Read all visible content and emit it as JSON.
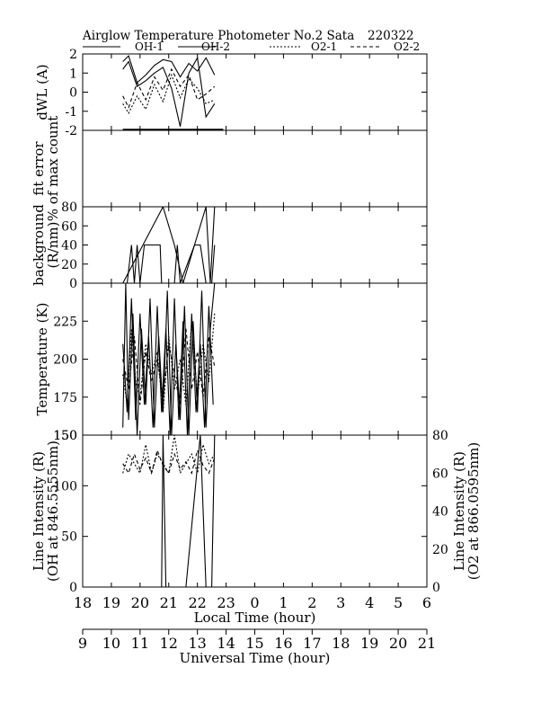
{
  "header": {
    "title": "Airglow Temperature Photometer No.2  Sata",
    "date": "220322"
  },
  "legend": [
    {
      "label": "OH-1",
      "style": "solid"
    },
    {
      "label": "OH-2",
      "style": "solid"
    },
    {
      "label": "O2-1",
      "style": "dotted"
    },
    {
      "label": "O2-2",
      "style": "dashed"
    }
  ],
  "chart_data": {
    "type": "line",
    "x_local_ticks": [
      "18",
      "19",
      "20",
      "21",
      "22",
      "23",
      "0",
      "1",
      "2",
      "3",
      "4",
      "5",
      "6"
    ],
    "x_ut_ticks": [
      "9",
      "10",
      "11",
      "12",
      "13",
      "14",
      "15",
      "16",
      "17",
      "18",
      "19",
      "20",
      "21"
    ],
    "xlabel_local": "Local Time (hour)",
    "xlabel_ut": "Universal Time (hour)",
    "panels": [
      {
        "id": "dwl",
        "ylabel": [
          "dWL (A)"
        ],
        "ylim": [
          -2,
          2
        ],
        "yticks": [
          "-2",
          "-1",
          "0",
          "1",
          "2"
        ],
        "series": [
          {
            "name": "OH-1",
            "style": "solid",
            "x": [
              19.4,
              19.6,
              19.9,
              20.2,
              20.5,
              20.8,
              21.1,
              21.4,
              21.7,
              22.0,
              22.3,
              22.6
            ],
            "y": [
              1.6,
              1.9,
              0.5,
              0.9,
              1.4,
              1.7,
              1.6,
              0.8,
              1.5,
              1.1,
              1.8,
              0.9
            ]
          },
          {
            "name": "OH-2",
            "style": "solid",
            "x": [
              19.4,
              19.6,
              19.9,
              20.2,
              20.5,
              20.8,
              21.1,
              21.4,
              21.7,
              22.0,
              22.3,
              22.6
            ],
            "y": [
              1.2,
              1.6,
              0.3,
              0.6,
              1.0,
              1.3,
              0.2,
              -1.8,
              1.0,
              1.8,
              -1.3,
              -0.6
            ]
          },
          {
            "name": "O2-1",
            "style": "dotted",
            "x": [
              19.4,
              19.6,
              19.9,
              20.2,
              20.5,
              20.8,
              21.1,
              21.4,
              21.7,
              22.0,
              22.3,
              22.6
            ],
            "y": [
              -0.6,
              -1.1,
              -0.2,
              -0.9,
              0.4,
              -0.5,
              0.9,
              -0.3,
              0.7,
              0.2,
              -0.6,
              -0.4
            ]
          },
          {
            "name": "O2-2",
            "style": "dashed",
            "x": [
              19.4,
              19.6,
              19.9,
              20.2,
              20.5,
              20.8,
              21.1,
              21.4,
              21.7,
              22.0,
              22.3,
              22.6
            ],
            "y": [
              -0.2,
              -0.8,
              0.5,
              -0.4,
              0.8,
              0.1,
              1.2,
              0.3,
              0.9,
              -0.4,
              -0.1,
              0.3
            ]
          }
        ],
        "baseline": {
          "x": [
            19.4,
            22.9
          ],
          "y": -1.95
        }
      },
      {
        "id": "fit",
        "ylabel": [
          "fit error",
          "% of max count"
        ],
        "ylim": [
          0,
          1
        ],
        "yticks": [],
        "series": []
      },
      {
        "id": "bg",
        "ylabel": [
          "background",
          "(R/nm)"
        ],
        "ylim": [
          0,
          80
        ],
        "yticks": [
          "0",
          "20",
          "40",
          "60",
          "80"
        ],
        "series": [
          {
            "name": "OH-1",
            "style": "solid",
            "x": [
              19.4,
              19.55,
              19.7,
              19.8,
              19.9,
              20.0,
              20.15,
              20.4,
              20.7,
              20.75,
              21.2,
              21.3,
              21.4,
              21.9,
              22.1,
              22.3,
              22.5,
              22.6
            ],
            "y": [
              0,
              0,
              40,
              0,
              40,
              0,
              40,
              40,
              40,
              0,
              0,
              40,
              0,
              40,
              40,
              0,
              0,
              40
            ]
          },
          {
            "name": "OH-2",
            "style": "solid",
            "x": [
              19.4,
              20.8,
              21.2,
              21.5,
              22.3,
              22.45,
              22.6
            ],
            "y": [
              0,
              80,
              40,
              0,
              80,
              0,
              80
            ]
          },
          {
            "name": "O2-1",
            "style": "dotted",
            "x": [
              19.4,
              22.7
            ],
            "y": [
              0,
              0
            ]
          },
          {
            "name": "O2-2",
            "style": "dashed",
            "x": [
              19.4,
              22.7
            ],
            "y": [
              0,
              0
            ]
          }
        ]
      },
      {
        "id": "temp",
        "ylabel": [
          "Temperature (K)"
        ],
        "ylim": [
          150,
          250
        ],
        "yticks": [
          "150",
          "175",
          "200",
          "225"
        ],
        "series": [
          {
            "name": "OH-1",
            "style": "solid",
            "x": [
              19.4,
              19.5,
              19.6,
              19.75,
              19.9,
              20.05,
              20.2,
              20.35,
              20.5,
              20.65,
              20.8,
              20.95,
              21.1,
              21.25,
              21.4,
              21.55,
              21.7,
              21.85,
              22.0,
              22.15,
              22.3,
              22.45,
              22.6
            ],
            "y": [
              155,
              250,
              160,
              230,
              150,
              220,
              170,
              240,
              155,
              215,
              165,
              245,
              150,
              210,
              160,
              235,
              150,
              225,
              165,
              245,
              155,
              220,
              250
            ]
          },
          {
            "name": "OH-2",
            "style": "solid",
            "x": [
              19.4,
              19.55,
              19.7,
              19.85,
              20.0,
              20.15,
              20.3,
              20.45,
              20.6,
              20.75,
              20.9,
              21.05,
              21.2,
              21.35,
              21.5,
              21.65,
              21.8,
              21.95,
              22.1,
              22.25,
              22.4,
              22.55
            ],
            "y": [
              210,
              165,
              240,
              160,
              230,
              170,
              215,
              155,
              235,
              165,
              220,
              150,
              240,
              160,
              225,
              150,
              230,
              165,
              210,
              155,
              235,
              170
            ]
          },
          {
            "name": "O2-1",
            "style": "dotted",
            "x": [
              19.4,
              19.55,
              19.7,
              19.85,
              20.0,
              20.2,
              20.4,
              20.6,
              20.8,
              21.0,
              21.2,
              21.4,
              21.6,
              21.8,
              22.0,
              22.2,
              22.4,
              22.6
            ],
            "y": [
              190,
              170,
              220,
              185,
              175,
              210,
              190,
              205,
              165,
              215,
              180,
              200,
              170,
              225,
              175,
              210,
              185,
              230
            ]
          },
          {
            "name": "O2-2",
            "style": "dashed",
            "x": [
              19.4,
              19.6,
              19.8,
              20.0,
              20.2,
              20.4,
              20.6,
              20.8,
              21.0,
              21.2,
              21.4,
              21.6,
              21.8,
              22.0,
              22.2,
              22.4,
              22.6
            ],
            "y": [
              200,
              180,
              215,
              170,
              205,
              185,
              200,
              175,
              210,
              190,
              170,
              220,
              180,
              205,
              175,
              215,
              195
            ]
          }
        ]
      },
      {
        "id": "int",
        "ylabel": [
          "Line Intensity (R)",
          "(OH at 846.5555nm)"
        ],
        "ylabel_right": [
          "Line Intensity (R)",
          "(O2 at 866.0595nm)"
        ],
        "ylim": [
          0,
          150
        ],
        "yticks": [
          "0",
          "50",
          "100",
          "150"
        ],
        "ylim_right": [
          0,
          80
        ],
        "yticks_right": [
          "0",
          "20",
          "40",
          "60",
          "80"
        ],
        "series": [
          {
            "name": "OH-1",
            "style": "solid",
            "x": [
              19.4,
              19.45,
              19.6,
              19.75,
              19.9,
              20.05,
              20.2,
              20.35,
              20.5,
              20.65,
              20.8,
              20.95,
              21.1,
              21.25,
              21.4,
              21.55,
              21.7,
              21.85,
              22.0,
              22.15,
              22.3,
              22.45,
              22.6
            ],
            "y": [
              150,
              150,
              150,
              155,
              150,
              160,
              150,
              150,
              150,
              150,
              150,
              150,
              150,
              150,
              150,
              150,
              150,
              150,
              150,
              150,
              150,
              150,
              150
            ]
          },
          {
            "name": "OH-2",
            "style": "solid",
            "x": [
              19.4,
              20.7,
              20.75,
              20.8,
              20.9,
              21.5,
              21.6,
              22.1,
              22.3,
              22.5,
              22.6
            ],
            "y": [
              0,
              0,
              0,
              150,
              0,
              0,
              0,
              150,
              0,
              0,
              150
            ]
          },
          {
            "name": "O2-1",
            "style": "dotted",
            "x": [
              19.4,
              19.6,
              19.8,
              20.0,
              20.2,
              20.4,
              20.6,
              20.8,
              21.0,
              21.2,
              21.4,
              21.6,
              21.8,
              22.0,
              22.2,
              22.4,
              22.6
            ],
            "y": [
              60,
              70,
              65,
              60,
              75,
              60,
              70,
              65,
              60,
              80,
              60,
              65,
              70,
              60,
              75,
              65,
              70
            ]
          },
          {
            "name": "O2-2",
            "style": "dashed",
            "x": [
              19.4,
              19.6,
              19.8,
              20.0,
              20.2,
              20.4,
              20.6,
              20.8,
              21.0,
              21.2,
              21.4,
              21.6,
              21.8,
              22.0,
              22.2,
              22.4,
              22.6
            ],
            "y": [
              65,
              60,
              70,
              62,
              68,
              60,
              72,
              64,
              60,
              70,
              62,
              66,
              60,
              72,
              64,
              60,
              68
            ]
          }
        ]
      }
    ]
  }
}
